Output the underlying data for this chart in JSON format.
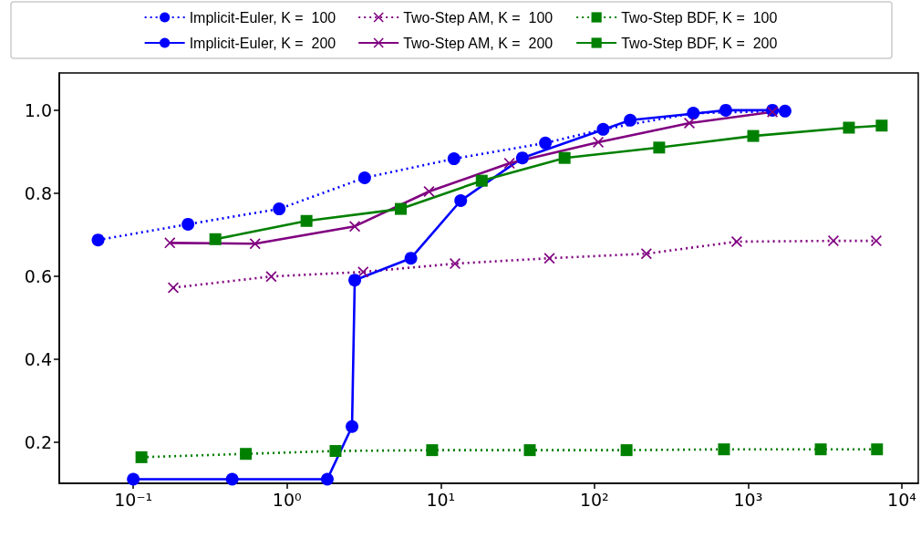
{
  "chart_data": {
    "type": "line",
    "log": "x",
    "grid": false,
    "legend": "top",
    "xlim": [
      0.033,
      12800
    ],
    "ylim": [
      0.1,
      1.09
    ],
    "xticks": [
      {
        "value": 0.1,
        "label": "10⁻¹"
      },
      {
        "value": 1,
        "label": "10⁰"
      },
      {
        "value": 10,
        "label": "10¹"
      },
      {
        "value": 100,
        "label": "10²"
      },
      {
        "value": 1000,
        "label": "10³"
      },
      {
        "value": 10000,
        "label": "10⁴"
      }
    ],
    "yticks": [
      0.2,
      0.4,
      0.6,
      0.8,
      {
        "value": 1,
        "label": "1.0"
      }
    ],
    "series": [
      {
        "name": "Implicit-Euler, K =  100",
        "color": "#0000ff",
        "marker": "circle",
        "line_style": "dotted",
        "x": [
          0.059,
          0.227,
          0.89,
          3.2,
          12.2,
          48,
          114,
          440,
          1740
        ],
        "values": [
          0.687,
          0.725,
          0.762,
          0.837,
          0.883,
          0.921,
          0.954,
          0.993,
          0.998
        ]
      },
      {
        "name": "Two-Step AM, K =  100",
        "color": "#800080",
        "marker": "cross",
        "line_style": "dotted",
        "x": [
          0.182,
          0.79,
          3.13,
          12.4,
          51,
          218,
          843,
          3590,
          6820
        ],
        "values": [
          0.572,
          0.599,
          0.61,
          0.63,
          0.643,
          0.654,
          0.683,
          0.685,
          0.685
        ]
      },
      {
        "name": "Two-Step BDF, K =  100",
        "color": "#008000",
        "marker": "square",
        "line_style": "dotted",
        "x": [
          0.113,
          0.54,
          2.07,
          8.8,
          38,
          162,
          697,
          2970,
          6900
        ],
        "values": [
          0.163,
          0.171,
          0.178,
          0.18,
          0.18,
          0.18,
          0.182,
          0.182,
          0.182
        ]
      },
      {
        "name": "Implicit-Euler, K =  200",
        "color": "#0000ff",
        "marker": "circle",
        "line_style": "solid",
        "x": [
          0.1,
          0.44,
          1.83,
          2.65,
          2.76,
          6.4,
          13.5,
          34,
          171,
          716,
          1440
        ],
        "values": [
          0.11,
          0.11,
          0.11,
          0.237,
          0.59,
          0.643,
          0.782,
          0.885,
          0.976,
          1.0,
          1.0
        ]
      },
      {
        "name": "Two-Step AM, K =  200",
        "color": "#800080",
        "marker": "cross",
        "line_style": "solid",
        "x": [
          0.173,
          0.62,
          2.76,
          8.4,
          28,
          106,
          415,
          1440
        ],
        "values": [
          0.68,
          0.678,
          0.72,
          0.804,
          0.872,
          0.923,
          0.969,
          0.996
        ]
      },
      {
        "name": "Two-Step BDF, K =  200",
        "color": "#008000",
        "marker": "square",
        "line_style": "solid",
        "x": [
          0.342,
          1.34,
          5.5,
          18.5,
          64,
          264,
          1080,
          4530,
          7400
        ],
        "values": [
          0.689,
          0.733,
          0.762,
          0.83,
          0.885,
          0.91,
          0.938,
          0.958,
          0.963
        ]
      }
    ]
  }
}
